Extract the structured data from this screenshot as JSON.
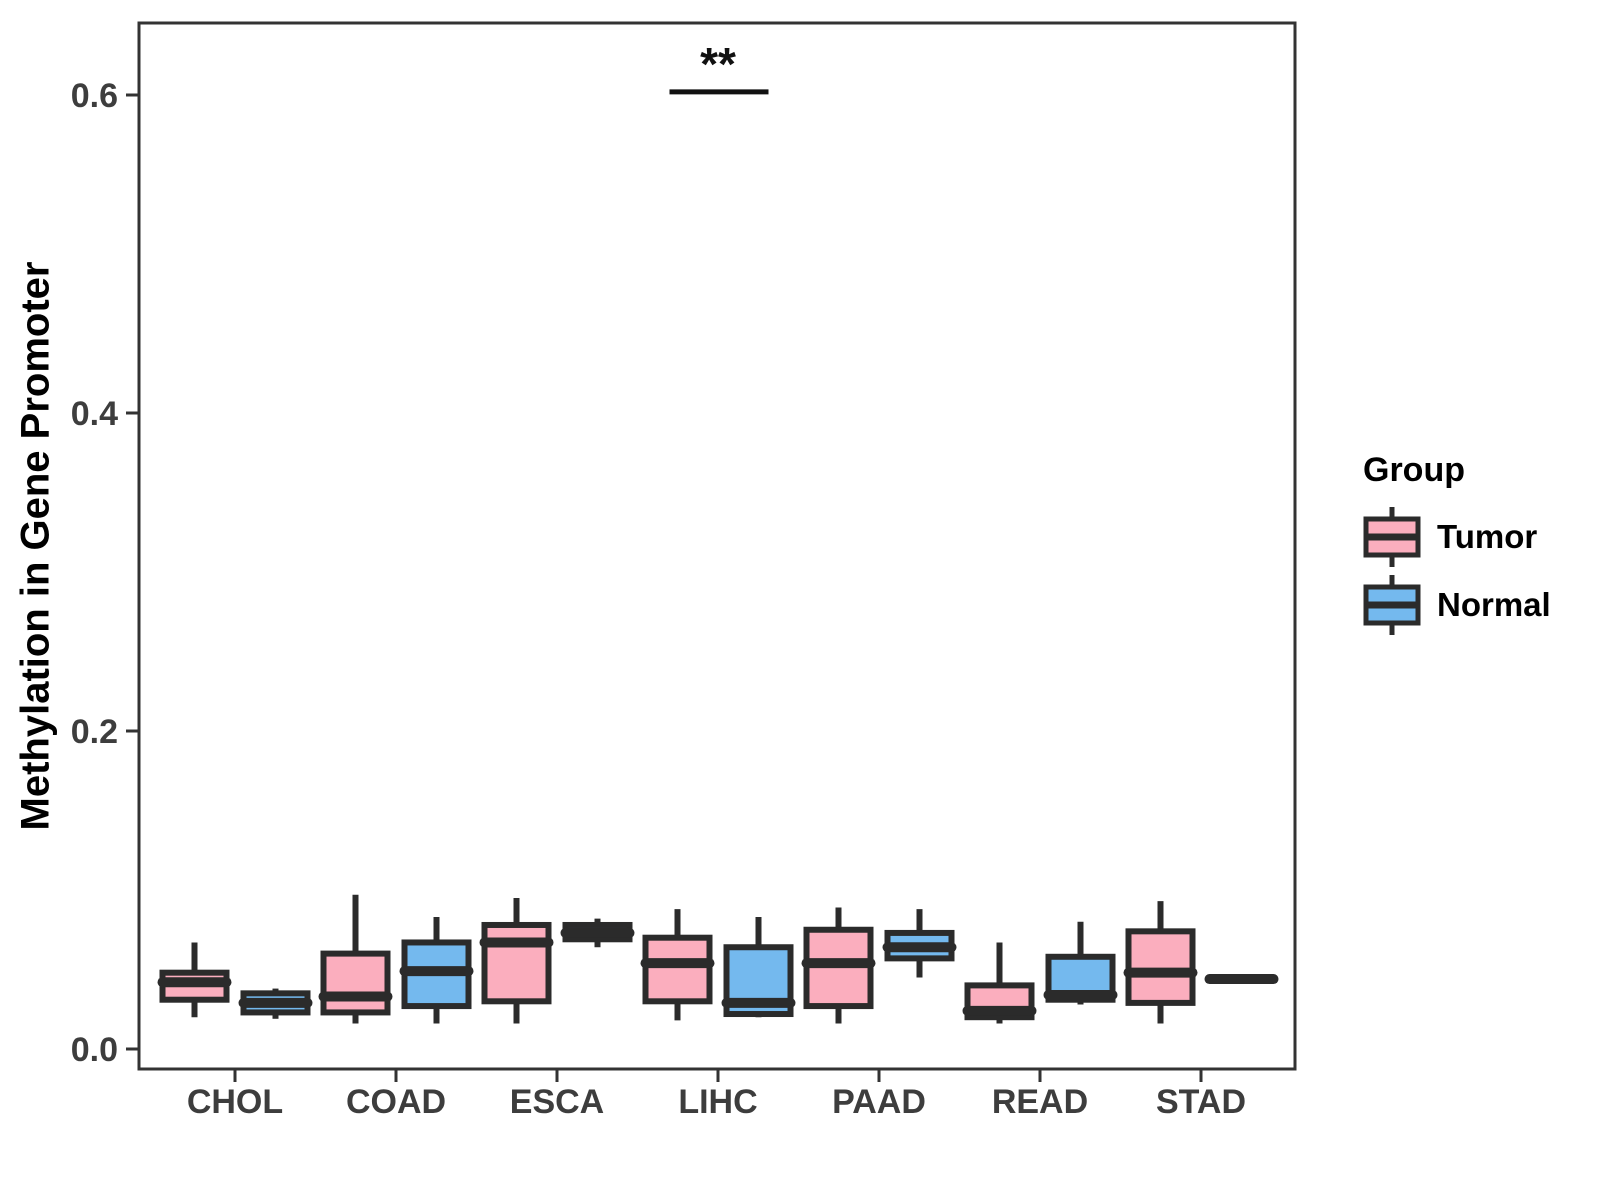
{
  "chart_data": {
    "type": "boxplot",
    "title": "",
    "xlabel": "",
    "ylabel": "Methylation in Gene Promoter",
    "categories": [
      "CHOL",
      "COAD",
      "ESCA",
      "LIHC",
      "PAAD",
      "READ",
      "STAD"
    ],
    "yticks": [
      {
        "value": 0.0,
        "label": "0.0"
      },
      {
        "value": 0.2,
        "label": "0.2"
      },
      {
        "value": 0.4,
        "label": "0.4"
      },
      {
        "value": 0.6,
        "label": "0.6"
      }
    ],
    "ylim": [
      -0.013,
      0.645
    ],
    "grid": "off",
    "legend": {
      "title": "Group",
      "position": "right",
      "entries": [
        {
          "label": "Tumor",
          "color": "#FBAEBE"
        },
        {
          "label": "Normal",
          "color": "#74B9EE"
        }
      ]
    },
    "series": [
      {
        "name": "Tumor",
        "color": "#FBAEBE",
        "stats": [
          {
            "category": "CHOL",
            "whisker_low": 0.02,
            "q1": 0.031,
            "median": 0.042,
            "q3": 0.048,
            "whisker_high": 0.067
          },
          {
            "category": "COAD",
            "whisker_low": 0.016,
            "q1": 0.023,
            "median": 0.033,
            "q3": 0.06,
            "whisker_high": 0.097
          },
          {
            "category": "ESCA",
            "whisker_low": 0.016,
            "q1": 0.03,
            "median": 0.067,
            "q3": 0.078,
            "whisker_high": 0.095
          },
          {
            "category": "LIHC",
            "whisker_low": 0.018,
            "q1": 0.03,
            "median": 0.054,
            "q3": 0.07,
            "whisker_high": 0.088
          },
          {
            "category": "PAAD",
            "whisker_low": 0.016,
            "q1": 0.027,
            "median": 0.054,
            "q3": 0.075,
            "whisker_high": 0.089
          },
          {
            "category": "READ",
            "whisker_low": 0.016,
            "q1": 0.02,
            "median": 0.024,
            "q3": 0.04,
            "whisker_high": 0.067
          },
          {
            "category": "STAD",
            "whisker_low": 0.016,
            "q1": 0.029,
            "median": 0.048,
            "q3": 0.074,
            "whisker_high": 0.093
          }
        ]
      },
      {
        "name": "Normal",
        "color": "#74B9EE",
        "stats": [
          {
            "category": "CHOL",
            "whisker_low": 0.019,
            "q1": 0.023,
            "median": 0.029,
            "q3": 0.035,
            "whisker_high": 0.038
          },
          {
            "category": "COAD",
            "whisker_low": 0.016,
            "q1": 0.027,
            "median": 0.049,
            "q3": 0.067,
            "whisker_high": 0.083
          },
          {
            "category": "ESCA",
            "whisker_low": 0.064,
            "q1": 0.069,
            "median": 0.073,
            "q3": 0.078,
            "whisker_high": 0.082
          },
          {
            "category": "LIHC",
            "whisker_low": 0.02,
            "q1": 0.022,
            "median": 0.029,
            "q3": 0.064,
            "whisker_high": 0.083
          },
          {
            "category": "PAAD",
            "whisker_low": 0.045,
            "q1": 0.057,
            "median": 0.064,
            "q3": 0.073,
            "whisker_high": 0.088
          },
          {
            "category": "READ",
            "whisker_low": 0.028,
            "q1": 0.031,
            "median": 0.034,
            "q3": 0.058,
            "whisker_high": 0.08
          },
          {
            "category": "STAD",
            "whisker_low": 0.044,
            "q1": 0.044,
            "median": 0.044,
            "q3": 0.044,
            "whisker_high": 0.044
          }
        ]
      }
    ],
    "annotation": {
      "text": "**",
      "category": "LIHC",
      "between": [
        "Tumor",
        "Normal"
      ],
      "y": 0.602
    },
    "colors": {
      "box_stroke": "#2B2B2B",
      "axis_line": "#333333",
      "tick_label": "#3D3D3D",
      "annotation": "#111111"
    }
  }
}
